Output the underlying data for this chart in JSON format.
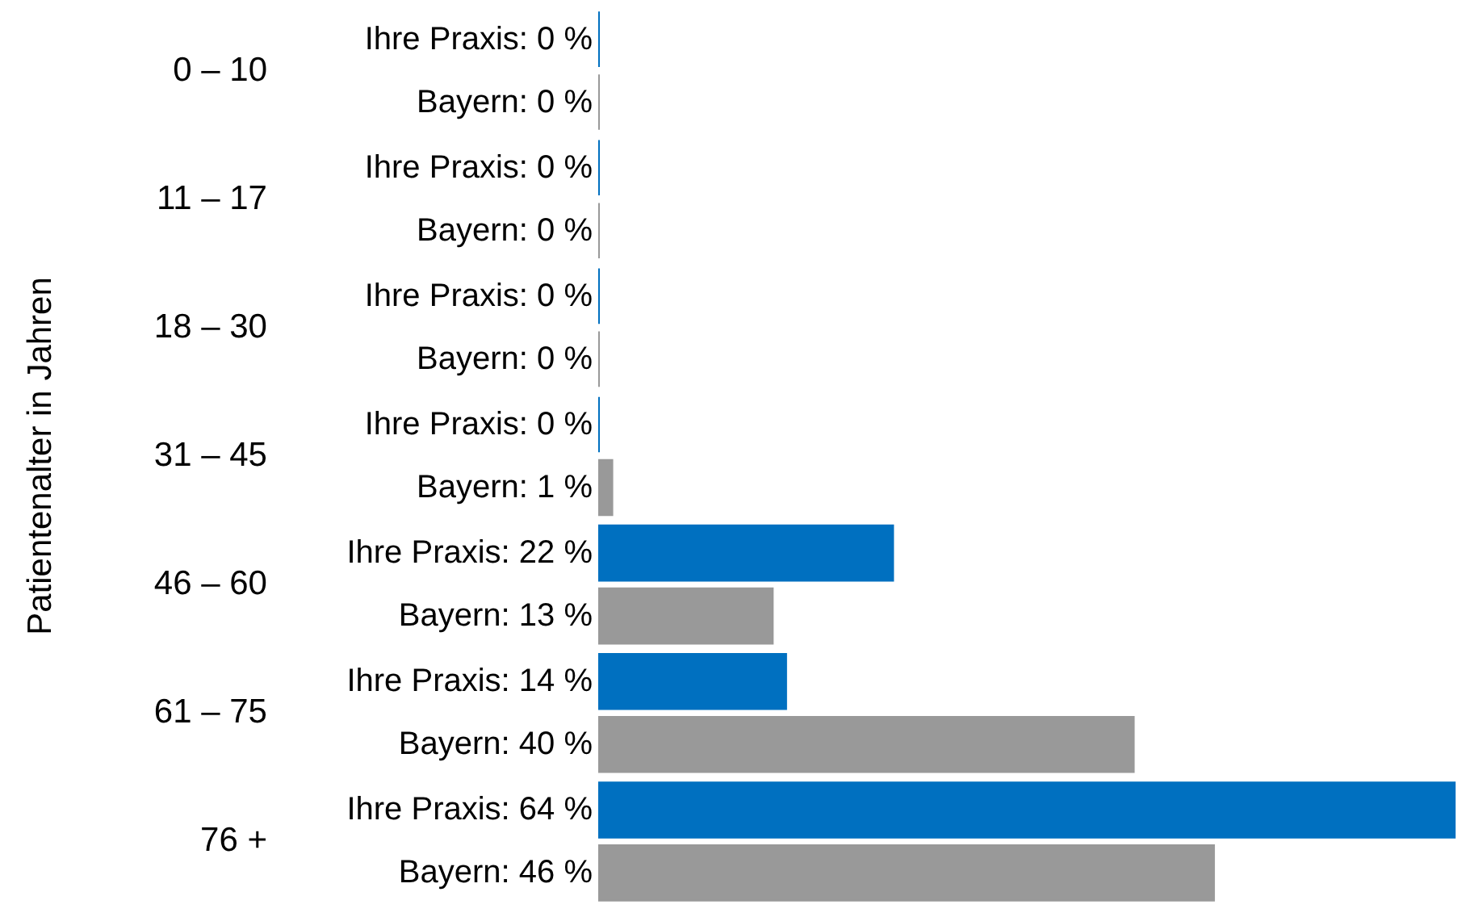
{
  "chart_data": {
    "type": "bar",
    "orientation": "horizontal",
    "ylabel": "Patientenalter in Jahren",
    "categories": [
      "0 – 10",
      "11 – 17",
      "18 – 30",
      "31 – 45",
      "46 – 60",
      "61 – 75",
      "76 +"
    ],
    "series": [
      {
        "color": "#0070c0",
        "values": [
          0,
          0,
          0,
          0,
          22,
          14,
          64
        ],
        "value_labels": [
          "Ihre Praxis: 0 %",
          "Ihre Praxis: 0 %",
          "Ihre Praxis: 0 %",
          "Ihre Praxis: 0 %",
          "Ihre Praxis: 22 %",
          "Ihre Praxis: 14 %",
          "Ihre Praxis: 64 %"
        ]
      },
      {
        "color": "#999999",
        "values": [
          0,
          0,
          0,
          1,
          13,
          40,
          46
        ],
        "value_labels": [
          "Bayern: 0 %",
          "Bayern: 0 %",
          "Bayern: 0 %",
          "Bayern: 1 %",
          "Bayern: 13 %",
          "Bayern: 40 %",
          "Bayern: 46 %"
        ]
      }
    ],
    "grid": false
  }
}
